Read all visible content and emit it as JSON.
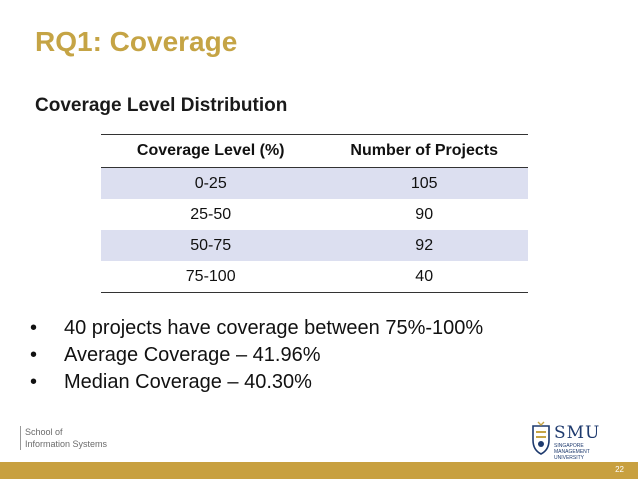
{
  "slide": {
    "title": "RQ1: Coverage",
    "subtitle": "Coverage Level Distribution",
    "page_number": "22"
  },
  "table": {
    "headers": [
      "Coverage Level (%)",
      "Number of Projects"
    ],
    "rows": [
      [
        "0-25",
        "105"
      ],
      [
        "25-50",
        "90"
      ],
      [
        "50-75",
        "92"
      ],
      [
        "75-100",
        "40"
      ]
    ]
  },
  "bullets": [
    "40 projects have coverage between 75%-100%",
    "Average Coverage – 41.96%",
    "Median Coverage – 40.30%"
  ],
  "bullet_glyph": "•",
  "footer": {
    "school_line1": "School of",
    "school_line2": "Information Systems",
    "logo_text": "SMU",
    "logo_sub1": "SINGAPORE MANAGEMENT",
    "logo_sub2": "UNIVERSITY"
  },
  "colors": {
    "accent": "#c5a445",
    "row_shade": "#dcdff0",
    "logo_blue": "#1e3a6e"
  }
}
